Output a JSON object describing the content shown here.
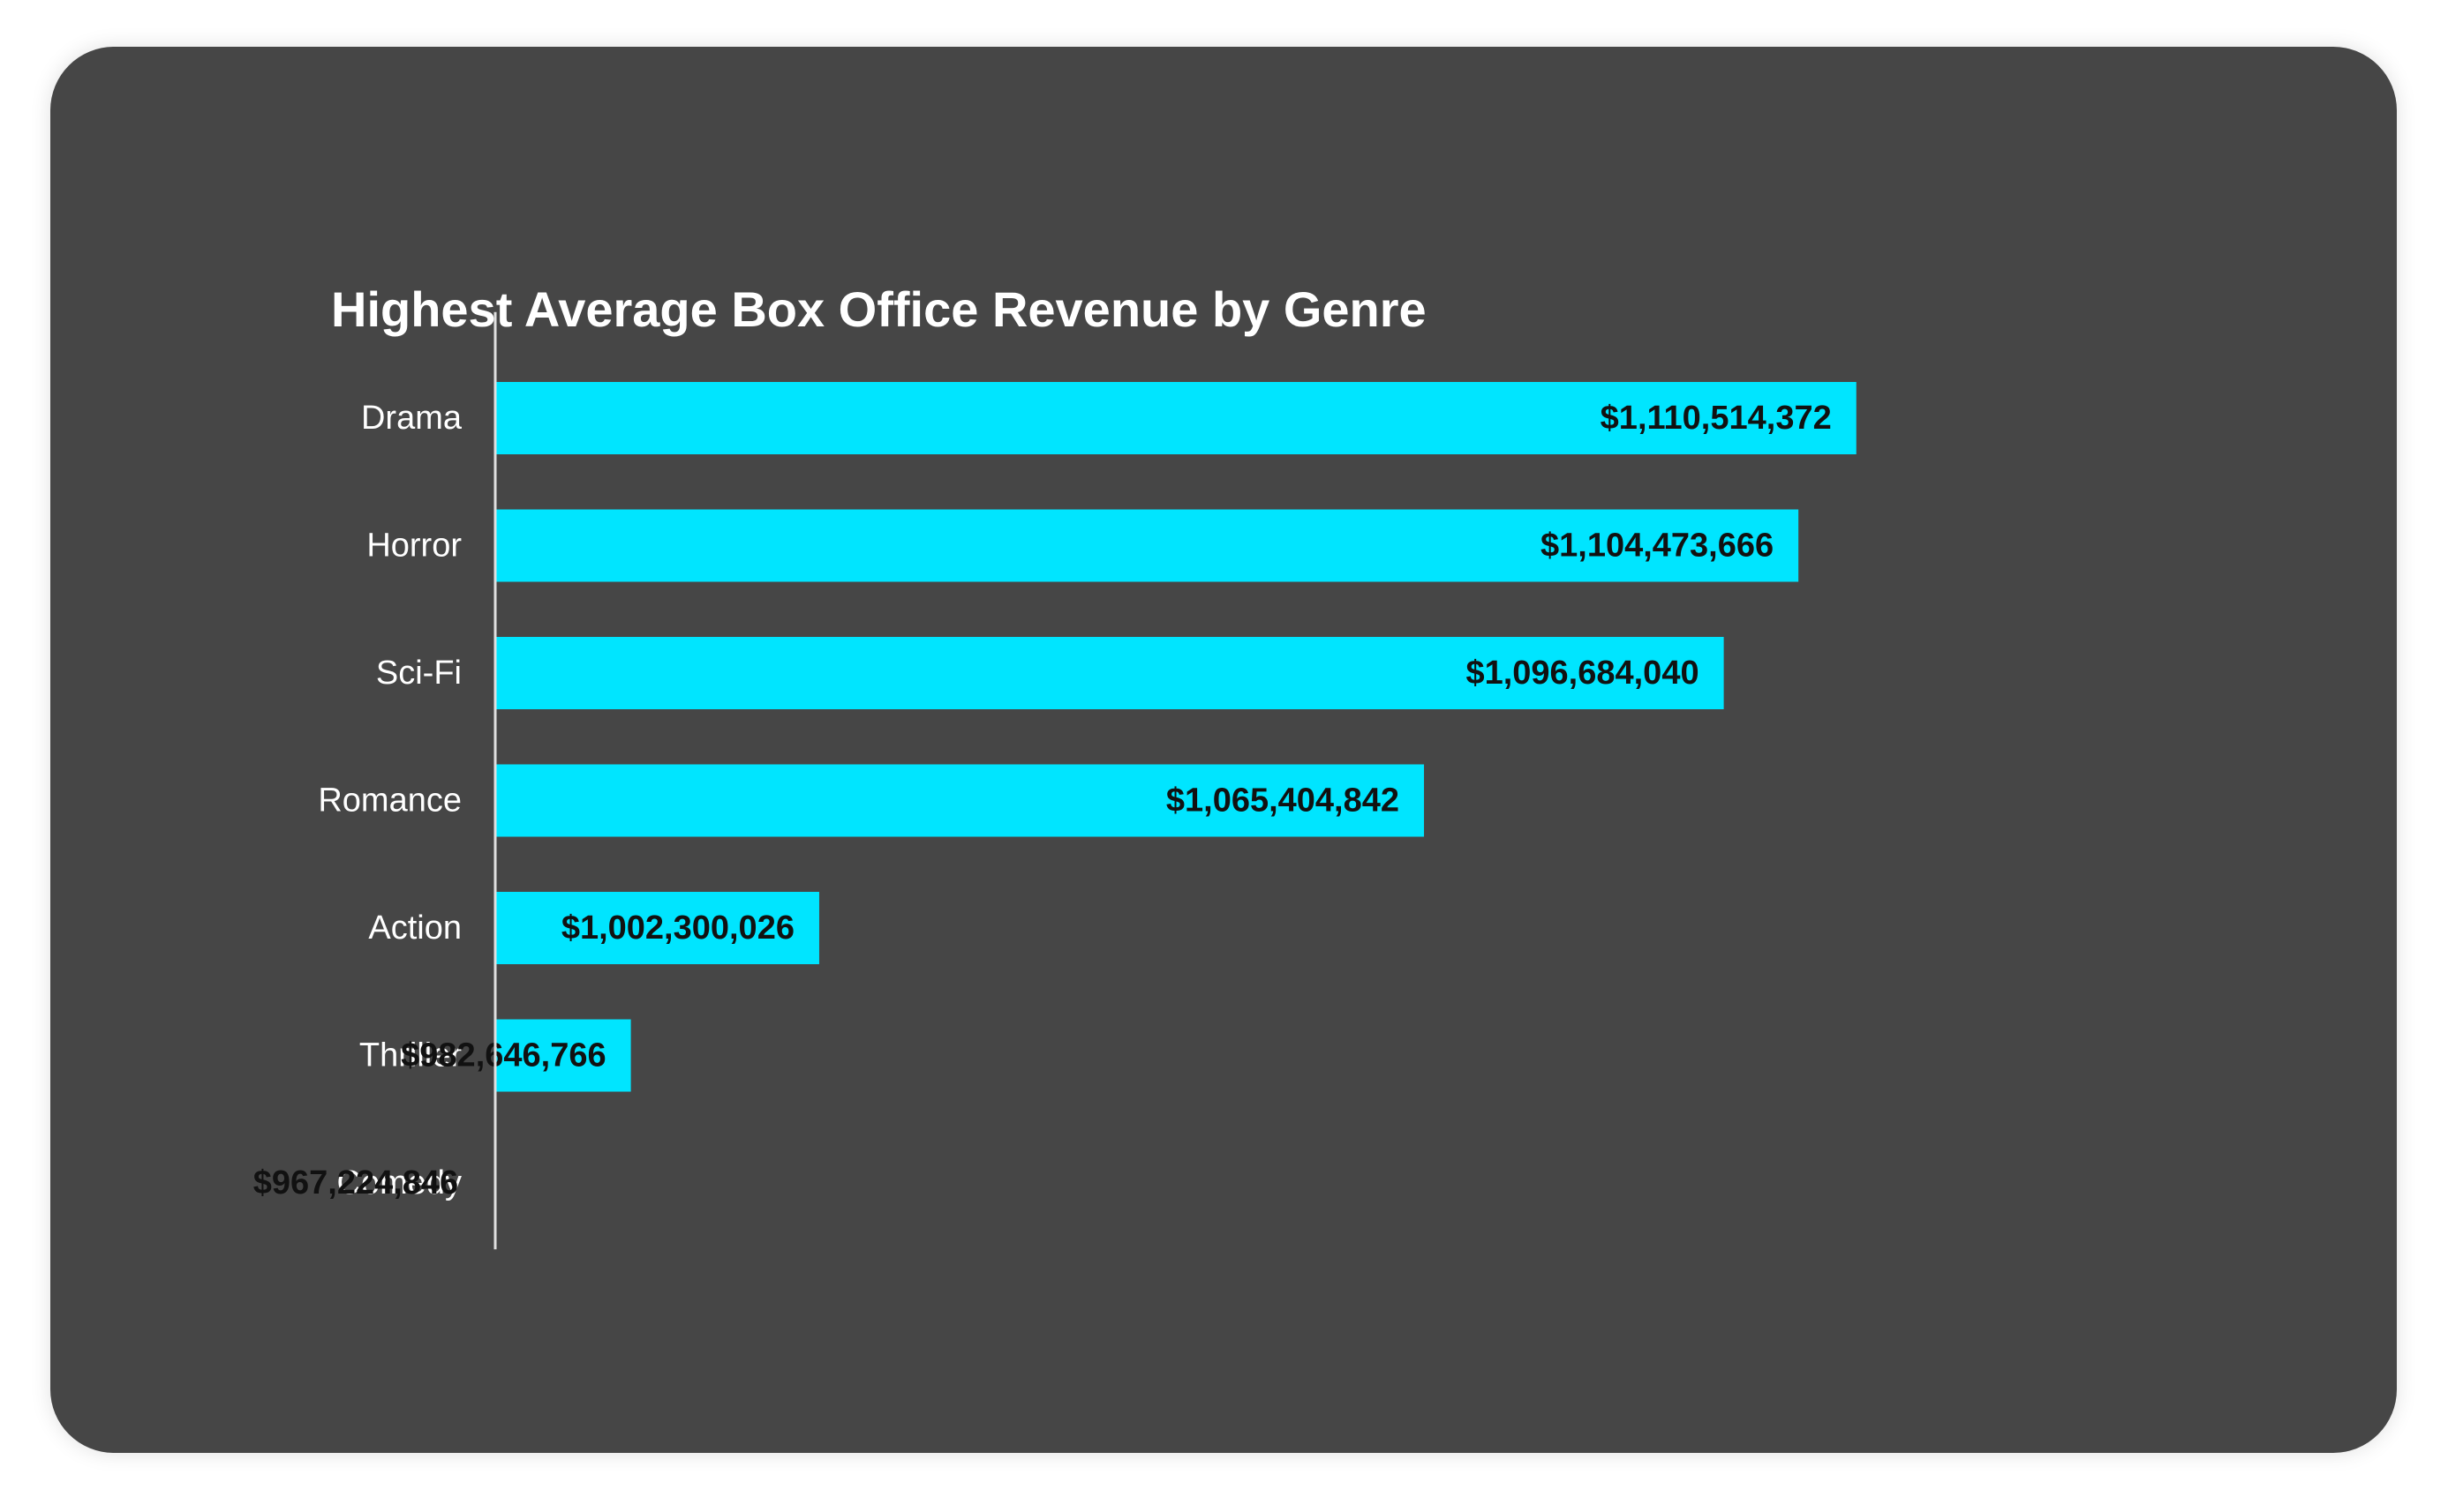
{
  "chart_data": {
    "type": "bar",
    "orientation": "horizontal",
    "title": "Highest Average Box Office Revenue by Genre",
    "xlabel": "",
    "ylabel": "",
    "categories": [
      "Drama",
      "Horror",
      "Sci-Fi",
      "Romance",
      "Action",
      "Thriller",
      "Comedy"
    ],
    "values": [
      1110514372,
      1104473666,
      1096684040,
      1065404842,
      1002300026,
      982646766,
      967224846
    ],
    "value_labels": [
      "$1,110,514,372",
      "$1,104,473,666",
      "$1,096,684,040",
      "$1,065,404,842",
      "$1,002,300,026",
      "$982,646,766",
      "$967,224,846"
    ],
    "grid": false,
    "legend": "none",
    "colors": {
      "bar": "#00E5FF",
      "card_background": "#464646",
      "text": "#FFFFFF",
      "value_text": "#111111",
      "axis_line": "#E0E0E0"
    }
  }
}
